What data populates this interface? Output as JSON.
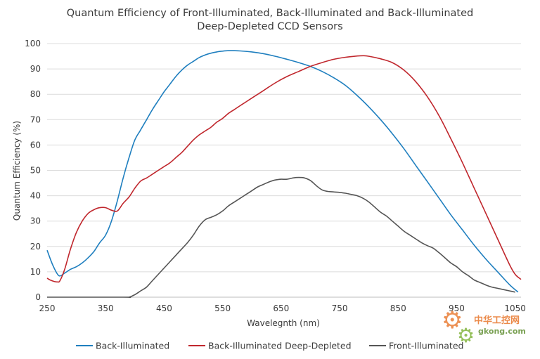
{
  "chart_data": {
    "type": "line",
    "title_line1": "Quantum Efficiency of Front-Illuminated, Back-Illuminated and Back-Illuminated",
    "title_line2": "Deep-Depleted CCD Sensors",
    "xlabel": "Wavelegnth (nm)",
    "ylabel": "Quantum Efficiency (%)",
    "xlim": [
      250,
      1060
    ],
    "ylim": [
      0,
      100
    ],
    "xticks": [
      250,
      350,
      450,
      550,
      650,
      750,
      850,
      950,
      1050
    ],
    "yticks": [
      0,
      10,
      20,
      30,
      40,
      50,
      60,
      70,
      80,
      90,
      100
    ],
    "grid": "horizontal",
    "legend_position": "bottom",
    "series": [
      {
        "name": "Back-Illuminated",
        "color": "#1f7fbf",
        "points": [
          [
            250,
            18.5
          ],
          [
            260,
            12.5
          ],
          [
            270,
            8.5
          ],
          [
            280,
            9.5
          ],
          [
            290,
            11
          ],
          [
            300,
            12
          ],
          [
            310,
            13.5
          ],
          [
            320,
            15.5
          ],
          [
            330,
            18
          ],
          [
            340,
            21.5
          ],
          [
            350,
            24.5
          ],
          [
            360,
            30
          ],
          [
            370,
            38
          ],
          [
            380,
            47
          ],
          [
            390,
            55
          ],
          [
            400,
            62
          ],
          [
            410,
            66
          ],
          [
            420,
            70
          ],
          [
            430,
            74
          ],
          [
            440,
            77.5
          ],
          [
            450,
            81
          ],
          [
            460,
            84
          ],
          [
            470,
            87
          ],
          [
            480,
            89.5
          ],
          [
            490,
            91.5
          ],
          [
            500,
            93
          ],
          [
            510,
            94.5
          ],
          [
            520,
            95.5
          ],
          [
            530,
            96.2
          ],
          [
            540,
            96.7
          ],
          [
            550,
            97
          ],
          [
            560,
            97.2
          ],
          [
            570,
            97.2
          ],
          [
            580,
            97.1
          ],
          [
            600,
            96.7
          ],
          [
            620,
            96
          ],
          [
            640,
            95
          ],
          [
            660,
            93.8
          ],
          [
            680,
            92.5
          ],
          [
            700,
            91
          ],
          [
            720,
            89
          ],
          [
            740,
            86.5
          ],
          [
            760,
            83.5
          ],
          [
            780,
            79.5
          ],
          [
            800,
            75
          ],
          [
            820,
            70
          ],
          [
            840,
            64.5
          ],
          [
            860,
            58.5
          ],
          [
            880,
            52
          ],
          [
            900,
            45.5
          ],
          [
            920,
            39
          ],
          [
            940,
            32.5
          ],
          [
            960,
            26.5
          ],
          [
            980,
            20.5
          ],
          [
            1000,
            15
          ],
          [
            1020,
            10
          ],
          [
            1040,
            5
          ],
          [
            1055,
            2
          ]
        ]
      },
      {
        "name": "Back-Illuminated Deep-Depleted",
        "color": "#c0272d",
        "points": [
          [
            250,
            7.5
          ],
          [
            255,
            6.8
          ],
          [
            262,
            6.2
          ],
          [
            268,
            6
          ],
          [
            272,
            6.5
          ],
          [
            280,
            11
          ],
          [
            290,
            19
          ],
          [
            300,
            25.5
          ],
          [
            310,
            30
          ],
          [
            320,
            33
          ],
          [
            330,
            34.5
          ],
          [
            340,
            35.3
          ],
          [
            350,
            35.3
          ],
          [
            360,
            34.3
          ],
          [
            370,
            34
          ],
          [
            380,
            37
          ],
          [
            390,
            39.5
          ],
          [
            400,
            43
          ],
          [
            410,
            45.8
          ],
          [
            420,
            47
          ],
          [
            430,
            48.5
          ],
          [
            440,
            50
          ],
          [
            450,
            51.5
          ],
          [
            460,
            53
          ],
          [
            470,
            55
          ],
          [
            480,
            57
          ],
          [
            490,
            59.5
          ],
          [
            500,
            62
          ],
          [
            510,
            64
          ],
          [
            520,
            65.5
          ],
          [
            530,
            67
          ],
          [
            540,
            69
          ],
          [
            550,
            70.5
          ],
          [
            560,
            72.5
          ],
          [
            570,
            74
          ],
          [
            580,
            75.5
          ],
          [
            590,
            77
          ],
          [
            600,
            78.5
          ],
          [
            620,
            81.5
          ],
          [
            640,
            84.5
          ],
          [
            660,
            87
          ],
          [
            680,
            89
          ],
          [
            700,
            91
          ],
          [
            720,
            92.5
          ],
          [
            740,
            93.8
          ],
          [
            760,
            94.6
          ],
          [
            780,
            95.1
          ],
          [
            790,
            95.2
          ],
          [
            800,
            95
          ],
          [
            820,
            94
          ],
          [
            840,
            92.5
          ],
          [
            860,
            89.5
          ],
          [
            880,
            85
          ],
          [
            900,
            79
          ],
          [
            920,
            71.5
          ],
          [
            940,
            62.5
          ],
          [
            960,
            53
          ],
          [
            980,
            43
          ],
          [
            1000,
            33
          ],
          [
            1020,
            23
          ],
          [
            1040,
            13
          ],
          [
            1050,
            9
          ],
          [
            1060,
            7
          ]
        ]
      },
      {
        "name": "Front-Illuminated",
        "color": "#555555",
        "points": [
          [
            250,
            0
          ],
          [
            380,
            0
          ],
          [
            390,
            0
          ],
          [
            400,
            1
          ],
          [
            410,
            2.5
          ],
          [
            420,
            4
          ],
          [
            430,
            6.5
          ],
          [
            440,
            9
          ],
          [
            450,
            11.5
          ],
          [
            460,
            14
          ],
          [
            470,
            16.5
          ],
          [
            480,
            19
          ],
          [
            490,
            21.5
          ],
          [
            500,
            24.5
          ],
          [
            510,
            28
          ],
          [
            520,
            30.5
          ],
          [
            530,
            31.5
          ],
          [
            540,
            32.5
          ],
          [
            550,
            34
          ],
          [
            560,
            36
          ],
          [
            570,
            37.5
          ],
          [
            580,
            39
          ],
          [
            590,
            40.5
          ],
          [
            600,
            42
          ],
          [
            610,
            43.5
          ],
          [
            620,
            44.5
          ],
          [
            630,
            45.5
          ],
          [
            640,
            46.2
          ],
          [
            650,
            46.5
          ],
          [
            660,
            46.5
          ],
          [
            670,
            47
          ],
          [
            680,
            47.2
          ],
          [
            690,
            47
          ],
          [
            700,
            46
          ],
          [
            710,
            44
          ],
          [
            720,
            42.3
          ],
          [
            730,
            41.7
          ],
          [
            740,
            41.5
          ],
          [
            750,
            41.3
          ],
          [
            760,
            41
          ],
          [
            770,
            40.5
          ],
          [
            780,
            40
          ],
          [
            790,
            39
          ],
          [
            800,
            37.5
          ],
          [
            810,
            35.5
          ],
          [
            820,
            33.5
          ],
          [
            830,
            32
          ],
          [
            840,
            30
          ],
          [
            850,
            28
          ],
          [
            860,
            26
          ],
          [
            870,
            24.5
          ],
          [
            880,
            23
          ],
          [
            890,
            21.5
          ],
          [
            900,
            20.3
          ],
          [
            910,
            19.3
          ],
          [
            920,
            17.5
          ],
          [
            930,
            15.5
          ],
          [
            940,
            13.5
          ],
          [
            950,
            12
          ],
          [
            960,
            10
          ],
          [
            970,
            8.5
          ],
          [
            980,
            6.8
          ],
          [
            990,
            5.8
          ],
          [
            1000,
            4.8
          ],
          [
            1010,
            4
          ],
          [
            1020,
            3.5
          ],
          [
            1030,
            3
          ],
          [
            1040,
            2.5
          ],
          [
            1050,
            2
          ]
        ]
      }
    ]
  },
  "watermark": {
    "text": "中华工控网",
    "url": "gkong.com"
  }
}
